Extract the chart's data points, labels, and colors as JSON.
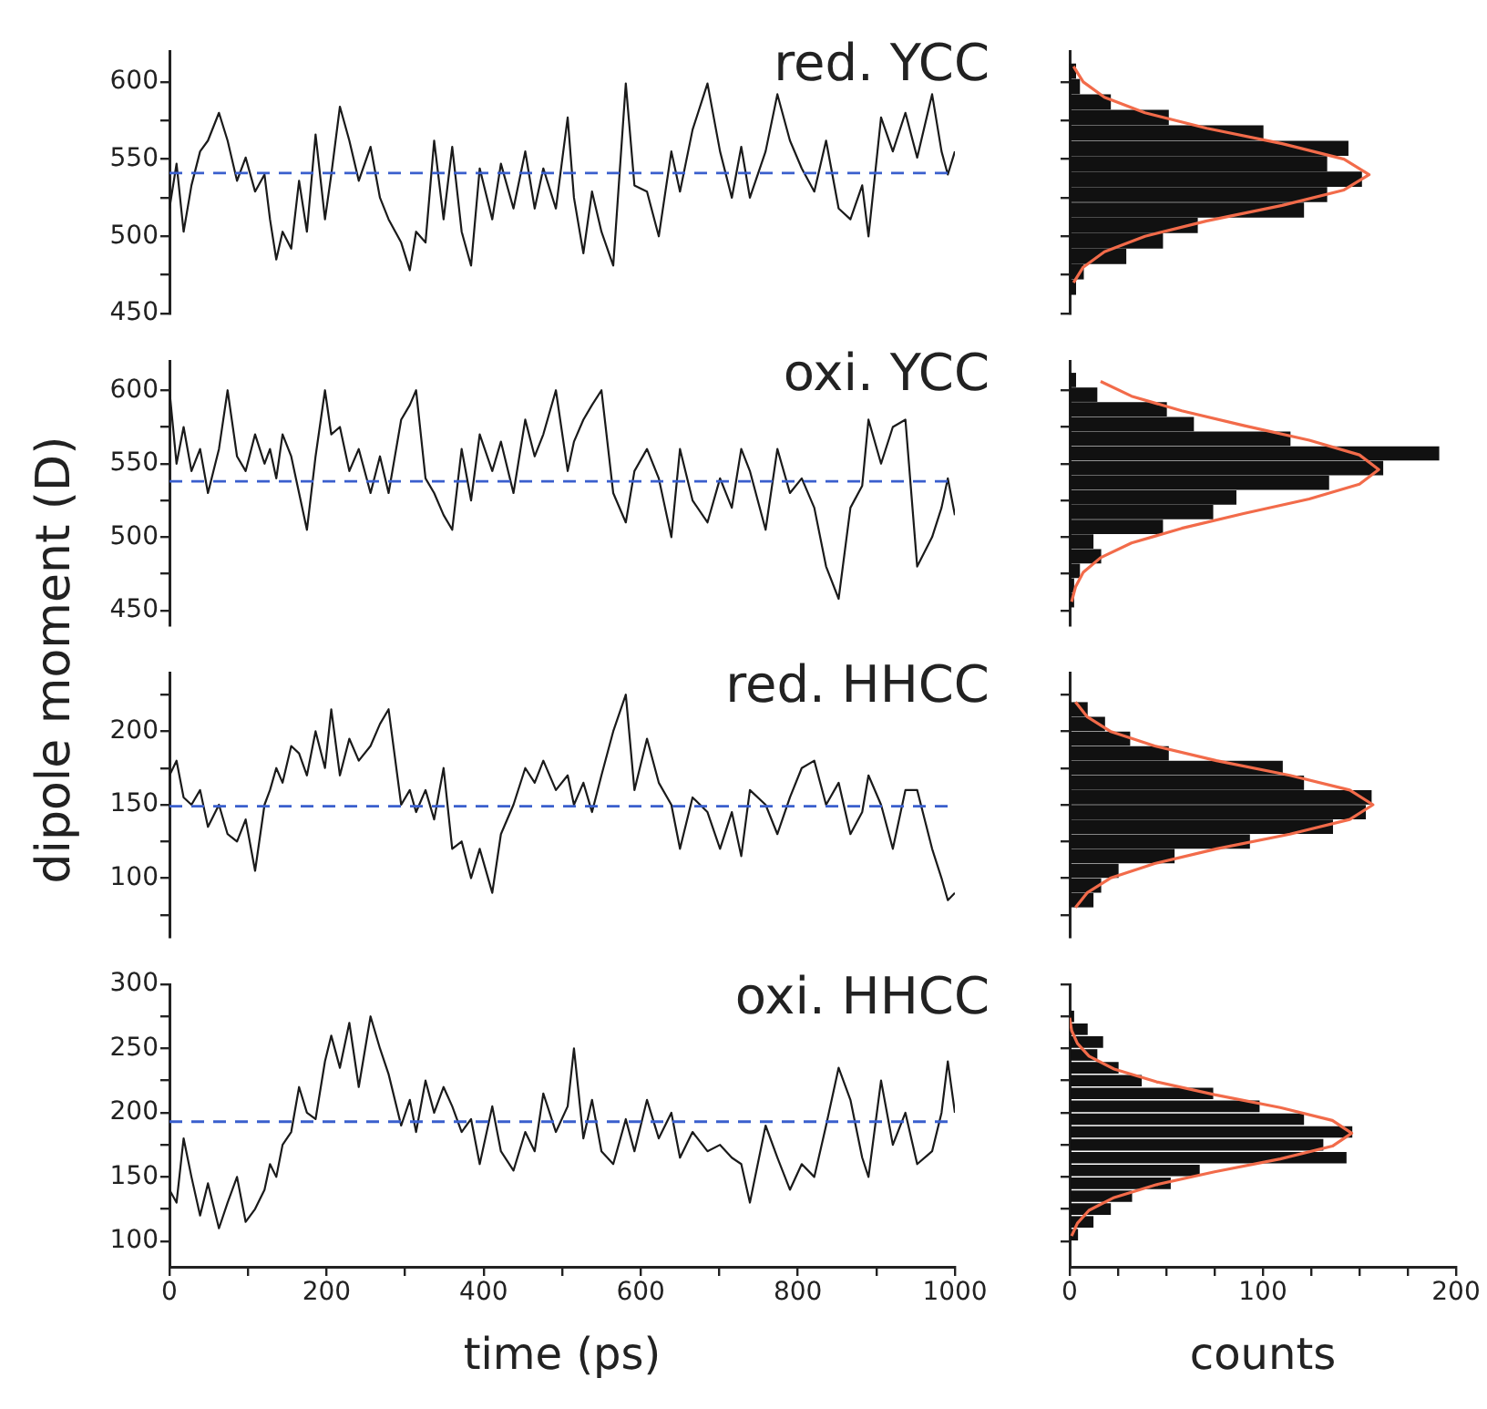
{
  "chart_data": [
    {
      "type": "line",
      "ylabel": "dipole moment (D)",
      "annotations": [
        "red. YCC"
      ],
      "marker": "none",
      "line_style": "solid",
      "tick_labels": "y",
      "xlim": [
        0,
        1000
      ],
      "ylim": [
        450,
        620
      ],
      "yticks": [
        450,
        {
          "value": 475,
          "label": null
        },
        500,
        {
          "value": 525,
          "label": null
        },
        550,
        {
          "value": 575,
          "label": null
        },
        600
      ],
      "x": [
        0,
        9,
        18,
        28,
        39,
        49,
        63,
        74,
        86,
        97,
        109,
        121,
        128,
        136,
        144,
        155,
        165,
        175,
        186,
        198,
        206,
        217,
        229,
        241,
        256,
        268,
        279,
        295,
        306,
        314,
        326,
        337,
        349,
        360,
        372,
        384,
        395,
        411,
        422,
        438,
        453,
        465,
        476,
        492,
        507,
        515,
        527,
        538,
        550,
        565,
        581,
        592,
        608,
        623,
        639,
        650,
        666,
        685,
        701,
        716,
        728,
        739,
        759,
        774,
        790,
        805,
        821,
        836,
        852,
        867,
        882,
        890,
        906,
        921,
        937,
        952,
        971,
        983,
        991,
        1000
      ],
      "series": [
        {
          "color": "#1a1a1a",
          "values": [
            518,
            547,
            503,
            533,
            555,
            562,
            580,
            562,
            536,
            551,
            529,
            540,
            511,
            485,
            503,
            492,
            536,
            503,
            566,
            511,
            540,
            584,
            562,
            536,
            558,
            525,
            511,
            496,
            478,
            503,
            496,
            562,
            511,
            558,
            503,
            481,
            544,
            511,
            547,
            518,
            555,
            518,
            544,
            518,
            577,
            525,
            489,
            529,
            503,
            481,
            599,
            533,
            529,
            500,
            555,
            529,
            569,
            599,
            555,
            525,
            558,
            525,
            555,
            592,
            562,
            544,
            529,
            562,
            518,
            511,
            533,
            500,
            577,
            555,
            580,
            551,
            592,
            555,
            540,
            555
          ]
        }
      ],
      "ref_lines": [
        {
          "axis": "y",
          "value": 541,
          "color": "#3a5fcd",
          "line_style": "dashed"
        }
      ]
    },
    {
      "type": "histogram",
      "orientation": "horizontal",
      "tick_labels": false,
      "color": "#111111",
      "xlim": [
        0,
        200
      ],
      "ylim": [
        450,
        620
      ],
      "yticks": [
        {
          "value": 450,
          "label": null
        },
        {
          "value": 475,
          "label": null
        },
        {
          "value": 500,
          "label": null
        },
        {
          "value": 525,
          "label": null
        },
        {
          "value": 550,
          "label": null
        },
        {
          "value": 575,
          "label": null
        },
        {
          "value": 600,
          "label": null
        }
      ],
      "bins": [
        462,
        472,
        482,
        492,
        502,
        512,
        522,
        532,
        542,
        552,
        562,
        572,
        582,
        592,
        602,
        612
      ],
      "values": [
        3,
        7,
        29,
        48,
        66,
        121,
        133,
        151,
        133,
        144,
        100,
        51,
        21,
        5,
        3
      ],
      "series": [
        {
          "type": "line",
          "color": "#f26b4a",
          "x": [
            470,
            480,
            490,
            500,
            510,
            520,
            530,
            540,
            550,
            560,
            570,
            580,
            590,
            600,
            610
          ],
          "values": [
            2,
            7,
            18,
            39,
            71,
            110,
            142,
            155,
            142,
            110,
            71,
            39,
            18,
            7,
            2
          ]
        }
      ]
    },
    {
      "type": "line",
      "annotations": [
        "oxi. YCC"
      ],
      "marker": "none",
      "line_style": "solid",
      "tick_labels": "y",
      "xlim": [
        0,
        1000
      ],
      "ylim": [
        440,
        620
      ],
      "yticks": [
        450,
        {
          "value": 475,
          "label": null
        },
        500,
        {
          "value": 525,
          "label": null
        },
        550,
        {
          "value": 575,
          "label": null
        },
        600
      ],
      "x": [
        0,
        9,
        18,
        28,
        39,
        49,
        63,
        74,
        86,
        97,
        109,
        121,
        128,
        136,
        144,
        155,
        165,
        175,
        186,
        198,
        206,
        217,
        229,
        241,
        256,
        268,
        279,
        295,
        306,
        314,
        326,
        337,
        349,
        360,
        372,
        384,
        395,
        411,
        422,
        438,
        453,
        465,
        476,
        492,
        507,
        515,
        527,
        538,
        550,
        565,
        581,
        592,
        608,
        623,
        639,
        650,
        666,
        685,
        701,
        716,
        728,
        739,
        759,
        774,
        790,
        805,
        821,
        836,
        852,
        867,
        882,
        890,
        906,
        921,
        937,
        952,
        971,
        983,
        991,
        1000
      ],
      "series": [
        {
          "color": "#1a1a1a",
          "values": [
            600,
            550,
            575,
            545,
            560,
            530,
            560,
            600,
            555,
            545,
            570,
            550,
            560,
            540,
            570,
            555,
            530,
            505,
            555,
            600,
            570,
            575,
            545,
            560,
            530,
            555,
            530,
            580,
            590,
            600,
            540,
            530,
            515,
            505,
            560,
            525,
            570,
            545,
            565,
            530,
            580,
            555,
            570,
            600,
            545,
            565,
            580,
            590,
            600,
            530,
            510,
            545,
            560,
            540,
            500,
            560,
            525,
            510,
            540,
            520,
            560,
            545,
            505,
            560,
            530,
            540,
            520,
            480,
            458,
            520,
            535,
            580,
            550,
            575,
            580,
            480,
            500,
            520,
            540,
            515
          ]
        }
      ],
      "ref_lines": [
        {
          "axis": "y",
          "value": 538,
          "color": "#3a5fcd",
          "line_style": "dashed"
        }
      ]
    },
    {
      "type": "histogram",
      "orientation": "horizontal",
      "tick_labels": false,
      "color": "#111111",
      "xlim": [
        0,
        200
      ],
      "ylim": [
        440,
        620
      ],
      "yticks": [
        {
          "value": 450,
          "label": null
        },
        {
          "value": 475,
          "label": null
        },
        {
          "value": 500,
          "label": null
        },
        {
          "value": 525,
          "label": null
        },
        {
          "value": 550,
          "label": null
        },
        {
          "value": 575,
          "label": null
        },
        {
          "value": 600,
          "label": null
        }
      ],
      "bins": [
        452,
        462,
        472,
        482,
        492,
        502,
        512,
        522,
        532,
        542,
        552,
        562,
        572,
        582,
        592,
        602,
        612
      ],
      "values": [
        2,
        2,
        5,
        16,
        12,
        48,
        74,
        86,
        134,
        162,
        191,
        114,
        64,
        50,
        14,
        3
      ],
      "series": [
        {
          "type": "line",
          "color": "#f26b4a",
          "x": [
            456,
            466,
            476,
            486,
            496,
            506,
            516,
            526,
            536,
            546,
            556,
            566,
            576,
            586,
            596,
            606
          ],
          "values": [
            1,
            3,
            7,
            16,
            32,
            58,
            90,
            124,
            150,
            160,
            150,
            124,
            90,
            58,
            32,
            16
          ]
        }
      ]
    },
    {
      "type": "line",
      "annotations": [
        "red. HHCC"
      ],
      "marker": "none",
      "line_style": "solid",
      "tick_labels": "y",
      "xlim": [
        0,
        1000
      ],
      "ylim": [
        60,
        240
      ],
      "yticks": [
        {
          "value": 75,
          "label": null
        },
        100,
        {
          "value": 125,
          "label": null
        },
        150,
        {
          "value": 175,
          "label": null
        },
        200,
        {
          "value": 225,
          "label": null
        }
      ],
      "x": [
        0,
        9,
        18,
        28,
        39,
        49,
        63,
        74,
        86,
        97,
        109,
        121,
        128,
        136,
        144,
        155,
        165,
        175,
        186,
        198,
        206,
        217,
        229,
        241,
        256,
        268,
        279,
        295,
        306,
        314,
        326,
        337,
        349,
        360,
        372,
        384,
        395,
        411,
        422,
        438,
        453,
        465,
        476,
        492,
        507,
        515,
        527,
        538,
        550,
        565,
        581,
        592,
        608,
        623,
        639,
        650,
        666,
        685,
        701,
        716,
        728,
        739,
        759,
        774,
        790,
        805,
        821,
        836,
        852,
        867,
        882,
        890,
        906,
        921,
        937,
        952,
        971,
        983,
        991,
        1000
      ],
      "series": [
        {
          "color": "#1a1a1a",
          "values": [
            170,
            180,
            155,
            150,
            160,
            135,
            150,
            130,
            125,
            140,
            105,
            150,
            160,
            175,
            165,
            190,
            185,
            170,
            200,
            175,
            215,
            170,
            195,
            180,
            190,
            205,
            215,
            150,
            160,
            145,
            160,
            140,
            175,
            120,
            125,
            100,
            120,
            90,
            130,
            150,
            175,
            165,
            180,
            160,
            170,
            150,
            165,
            145,
            170,
            200,
            225,
            160,
            195,
            165,
            150,
            120,
            155,
            145,
            120,
            145,
            115,
            160,
            150,
            130,
            155,
            175,
            180,
            150,
            165,
            130,
            145,
            170,
            150,
            120,
            160,
            160,
            120,
            100,
            85,
            90
          ]
        }
      ],
      "ref_lines": [
        {
          "axis": "y",
          "value": 149,
          "color": "#3a5fcd",
          "line_style": "dashed"
        }
      ]
    },
    {
      "type": "histogram",
      "orientation": "horizontal",
      "tick_labels": false,
      "color": "#111111",
      "xlim": [
        0,
        200
      ],
      "ylim": [
        60,
        240
      ],
      "yticks": [
        {
          "value": 75,
          "label": null
        },
        {
          "value": 100,
          "label": null
        },
        {
          "value": 125,
          "label": null
        },
        {
          "value": 150,
          "label": null
        },
        {
          "value": 175,
          "label": null
        },
        {
          "value": 200,
          "label": null
        },
        {
          "value": 225,
          "label": null
        }
      ],
      "bins": [
        80,
        90,
        100,
        110,
        120,
        130,
        140,
        150,
        160,
        170,
        180,
        190,
        200,
        210,
        220
      ],
      "values": [
        12,
        16,
        25,
        54,
        93,
        136,
        153,
        156,
        121,
        110,
        51,
        31,
        18,
        9
      ],
      "series": [
        {
          "type": "line",
          "color": "#f26b4a",
          "x": [
            80,
            90,
            100,
            110,
            120,
            130,
            140,
            150,
            160,
            170,
            180,
            190,
            200,
            210,
            220
          ],
          "values": [
            3,
            9,
            21,
            44,
            76,
            114,
            145,
            157,
            145,
            114,
            76,
            44,
            21,
            9,
            3
          ]
        }
      ]
    },
    {
      "type": "line",
      "xlabel": "time (ps)",
      "annotations": [
        "oxi. HHCC"
      ],
      "marker": "none",
      "line_style": "solid",
      "xlim": [
        0,
        1000
      ],
      "xticks": [
        0,
        {
          "value": 100,
          "label": null
        },
        200,
        {
          "value": 300,
          "label": null
        },
        400,
        {
          "value": 500,
          "label": null
        },
        600,
        {
          "value": 700,
          "label": null
        },
        800,
        {
          "value": 900,
          "label": null
        },
        1000
      ],
      "ylim": [
        80,
        300
      ],
      "yticks": [
        100,
        {
          "value": 125,
          "label": null
        },
        150,
        {
          "value": 175,
          "label": null
        },
        200,
        {
          "value": 225,
          "label": null
        },
        250,
        {
          "value": 275,
          "label": null
        },
        300
      ],
      "x": [
        0,
        9,
        18,
        28,
        39,
        49,
        63,
        74,
        86,
        97,
        109,
        121,
        128,
        136,
        144,
        155,
        165,
        175,
        186,
        198,
        206,
        217,
        229,
        241,
        256,
        268,
        279,
        295,
        306,
        314,
        326,
        337,
        349,
        360,
        372,
        384,
        395,
        411,
        422,
        438,
        453,
        465,
        476,
        492,
        507,
        515,
        527,
        538,
        550,
        565,
        581,
        592,
        608,
        623,
        639,
        650,
        666,
        685,
        701,
        716,
        728,
        739,
        759,
        774,
        790,
        805,
        821,
        836,
        852,
        867,
        882,
        890,
        906,
        921,
        937,
        952,
        971,
        983,
        991,
        1000
      ],
      "series": [
        {
          "color": "#1a1a1a",
          "values": [
            140,
            130,
            180,
            150,
            120,
            145,
            110,
            130,
            150,
            115,
            125,
            140,
            160,
            150,
            175,
            185,
            220,
            200,
            195,
            240,
            260,
            235,
            270,
            220,
            275,
            250,
            230,
            190,
            210,
            185,
            225,
            200,
            220,
            205,
            185,
            195,
            160,
            205,
            170,
            155,
            185,
            170,
            215,
            185,
            205,
            250,
            180,
            210,
            170,
            160,
            195,
            170,
            210,
            180,
            200,
            165,
            185,
            170,
            175,
            165,
            160,
            130,
            190,
            165,
            140,
            160,
            150,
            190,
            235,
            210,
            165,
            150,
            225,
            175,
            200,
            160,
            170,
            200,
            240,
            200
          ]
        }
      ],
      "ref_lines": [
        {
          "axis": "y",
          "value": 193,
          "color": "#3a5fcd",
          "line_style": "dashed"
        }
      ]
    },
    {
      "type": "histogram",
      "orientation": "horizontal",
      "xlabel": "counts",
      "tick_labels": "x",
      "color": "#111111",
      "xlim": [
        0,
        200
      ],
      "xticks": [
        0,
        {
          "value": 25,
          "label": null
        },
        {
          "value": 50,
          "label": null
        },
        {
          "value": 75,
          "label": null
        },
        100,
        {
          "value": 125,
          "label": null
        },
        {
          "value": 150,
          "label": null
        },
        {
          "value": 175,
          "label": null
        },
        200
      ],
      "ylim": [
        80,
        300
      ],
      "yticks": [
        {
          "value": 100,
          "label": null
        },
        {
          "value": 125,
          "label": null
        },
        {
          "value": 150,
          "label": null
        },
        {
          "value": 175,
          "label": null
        },
        {
          "value": 200,
          "label": null
        },
        {
          "value": 225,
          "label": null
        },
        {
          "value": 250,
          "label": null
        },
        {
          "value": 275,
          "label": null
        },
        {
          "value": 300,
          "label": null
        }
      ],
      "bins": [
        100,
        110,
        120,
        130,
        140,
        150,
        160,
        170,
        180,
        190,
        200,
        210,
        220,
        230,
        240,
        250,
        260,
        270,
        280
      ],
      "values": [
        4,
        12,
        21,
        32,
        52,
        67,
        143,
        131,
        146,
        121,
        98,
        74,
        37,
        25,
        14,
        17,
        9,
        2
      ],
      "series": [
        {
          "type": "line",
          "color": "#f26b4a",
          "x": [
            104,
            114,
            124,
            134,
            144,
            154,
            164,
            174,
            184,
            194,
            204,
            214,
            224,
            234,
            244,
            254,
            264,
            274
          ],
          "values": [
            1,
            4,
            10,
            23,
            45,
            75,
            109,
            136,
            146,
            136,
            109,
            75,
            45,
            23,
            10,
            4,
            1,
            0
          ]
        }
      ]
    }
  ]
}
